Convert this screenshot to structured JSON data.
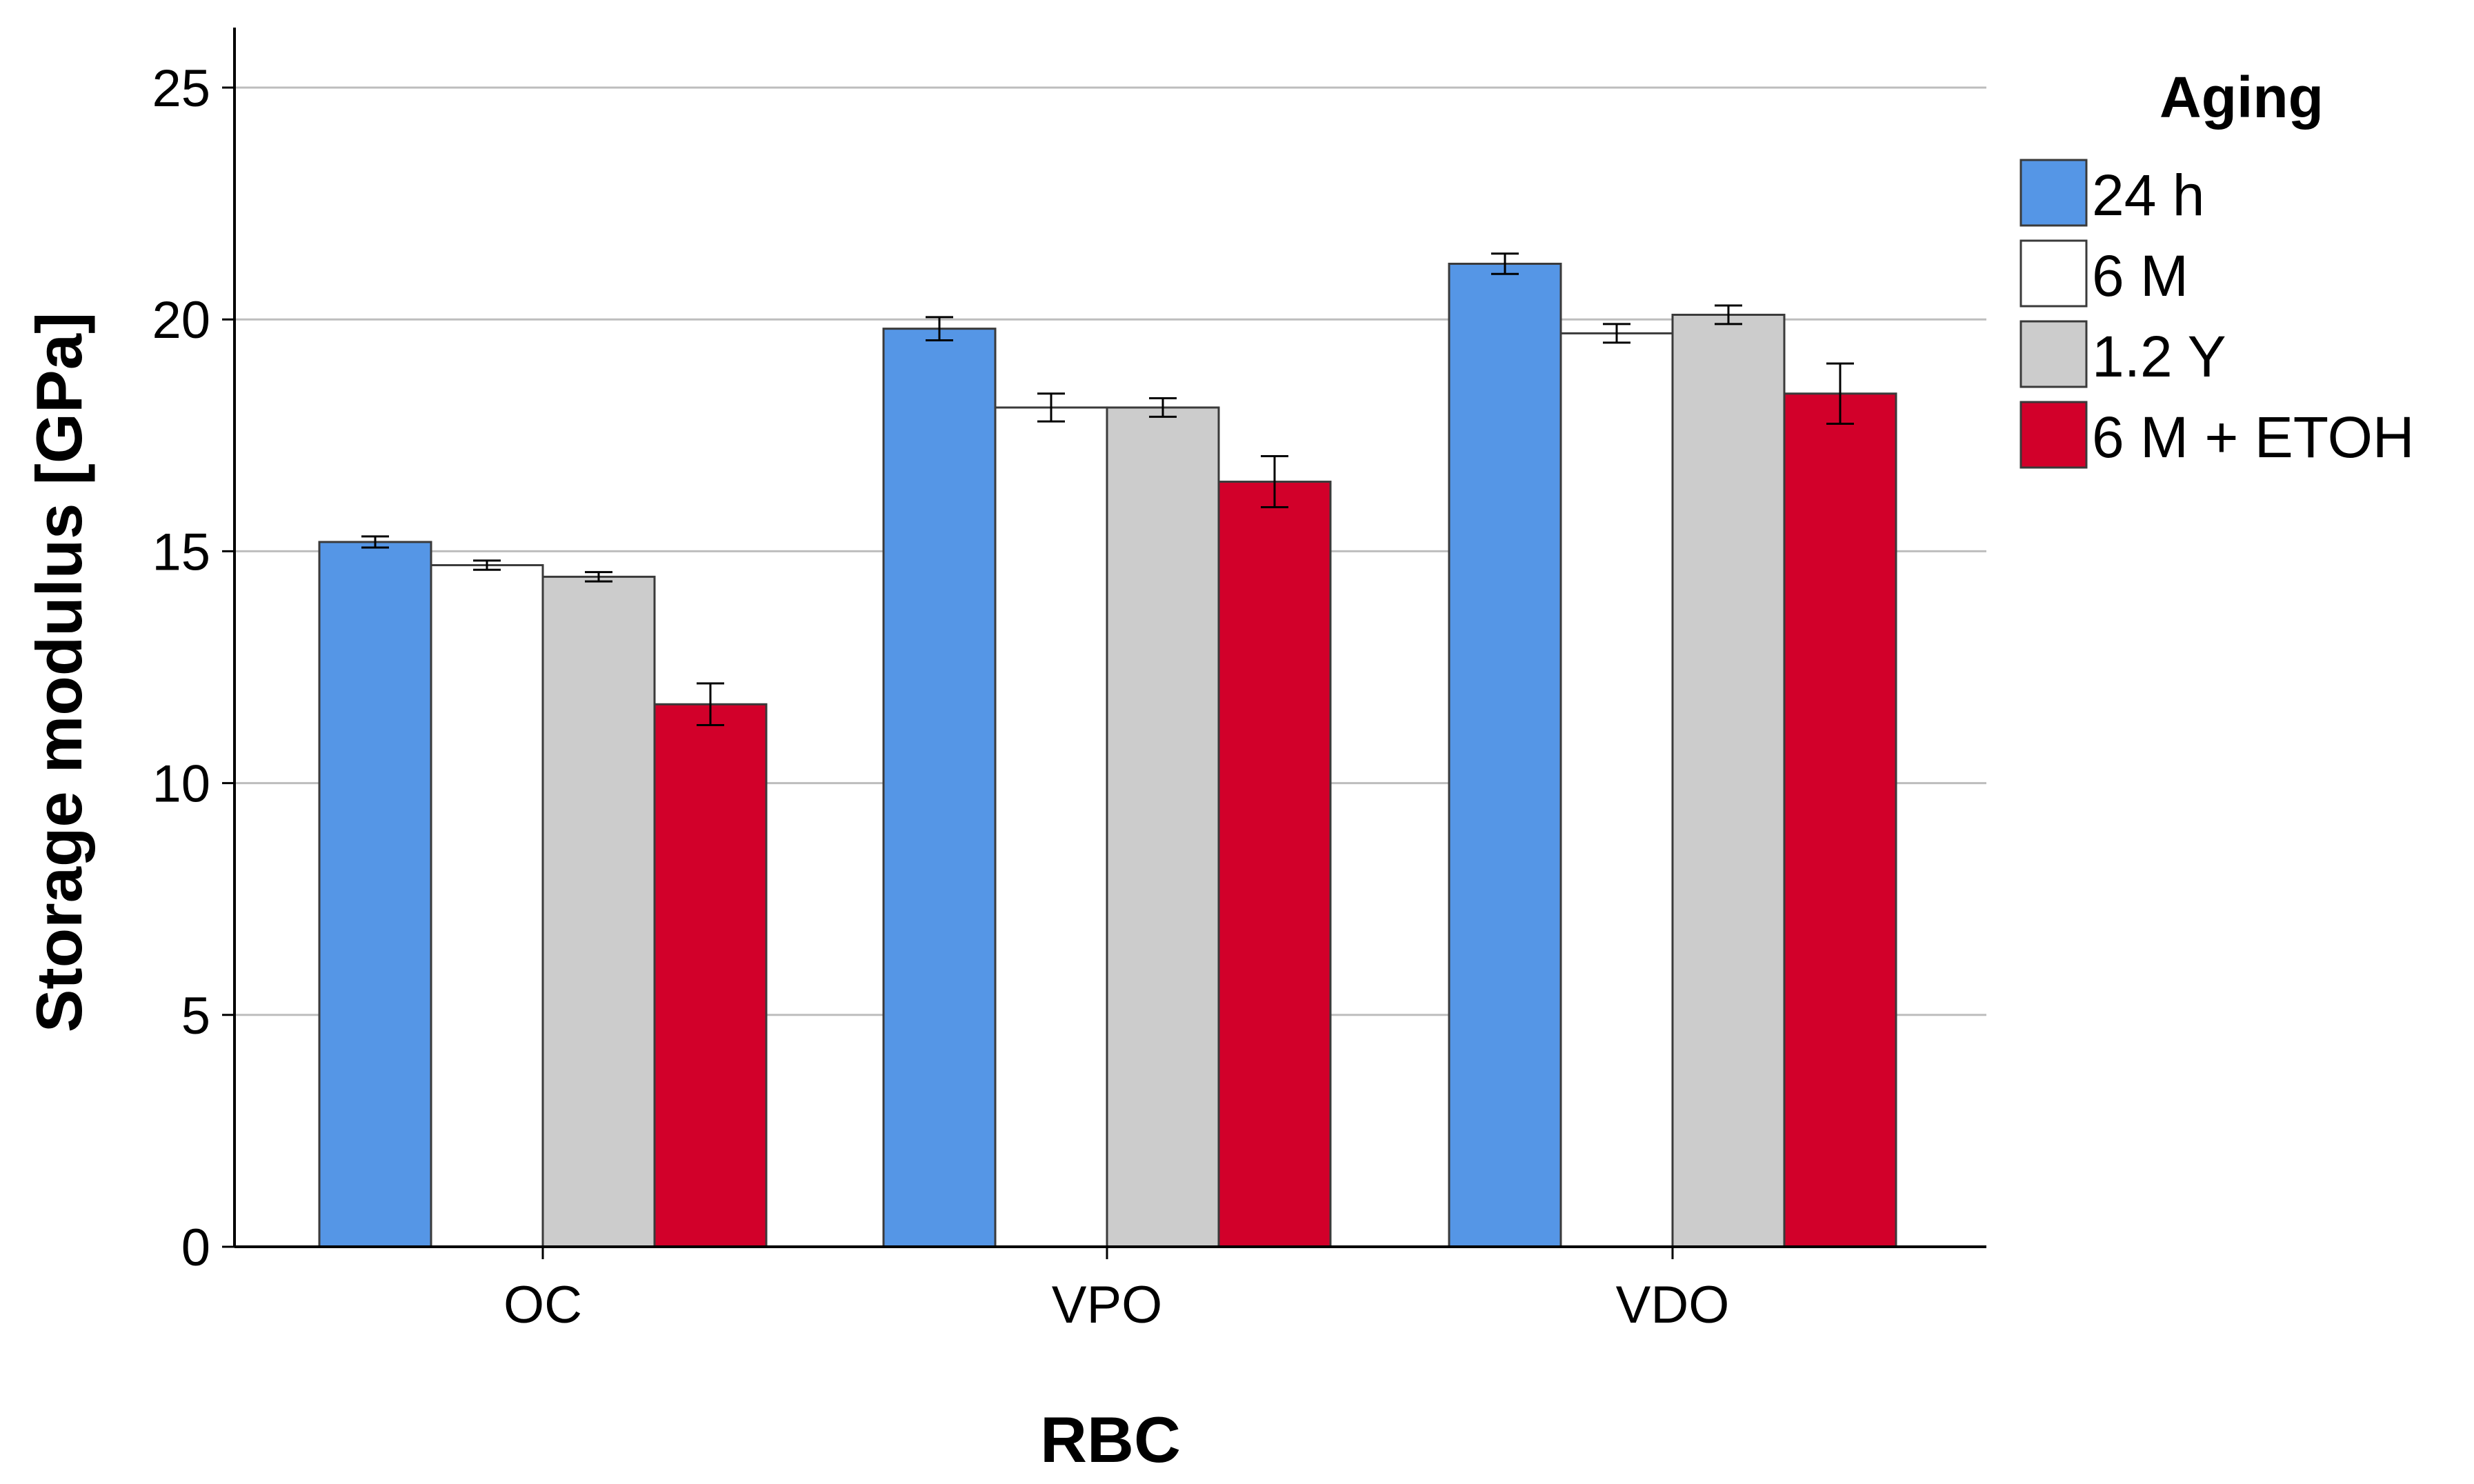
{
  "chart_data": {
    "type": "bar",
    "title": "",
    "xlabel": "RBC",
    "ylabel": "Storage modulus [GPa]",
    "ylim": [
      0,
      25
    ],
    "yticks": [
      "0",
      "5",
      "10",
      "15",
      "20",
      "25"
    ],
    "grid": true,
    "categories": [
      "OC",
      "VPO",
      "VDO"
    ],
    "legend": {
      "title": "Aging",
      "placement": "right"
    },
    "series": [
      {
        "name": "24 h",
        "color": "#5596e6",
        "values": [
          15.2,
          19.8,
          21.2
        ],
        "errors": [
          0.12,
          0.25,
          0.22
        ]
      },
      {
        "name": "6 M",
        "color": "#ffffff",
        "values": [
          14.7,
          18.1,
          19.7
        ],
        "errors": [
          0.1,
          0.3,
          0.2
        ]
      },
      {
        "name": "1.2 Y",
        "color": "#cccccc",
        "values": [
          14.45,
          18.1,
          20.1
        ],
        "errors": [
          0.1,
          0.2,
          0.2
        ]
      },
      {
        "name": "6 M + ETOH",
        "color": "#d2002a",
        "values": [
          11.7,
          16.5,
          18.4
        ],
        "errors": [
          0.45,
          0.55,
          0.65
        ]
      }
    ]
  }
}
